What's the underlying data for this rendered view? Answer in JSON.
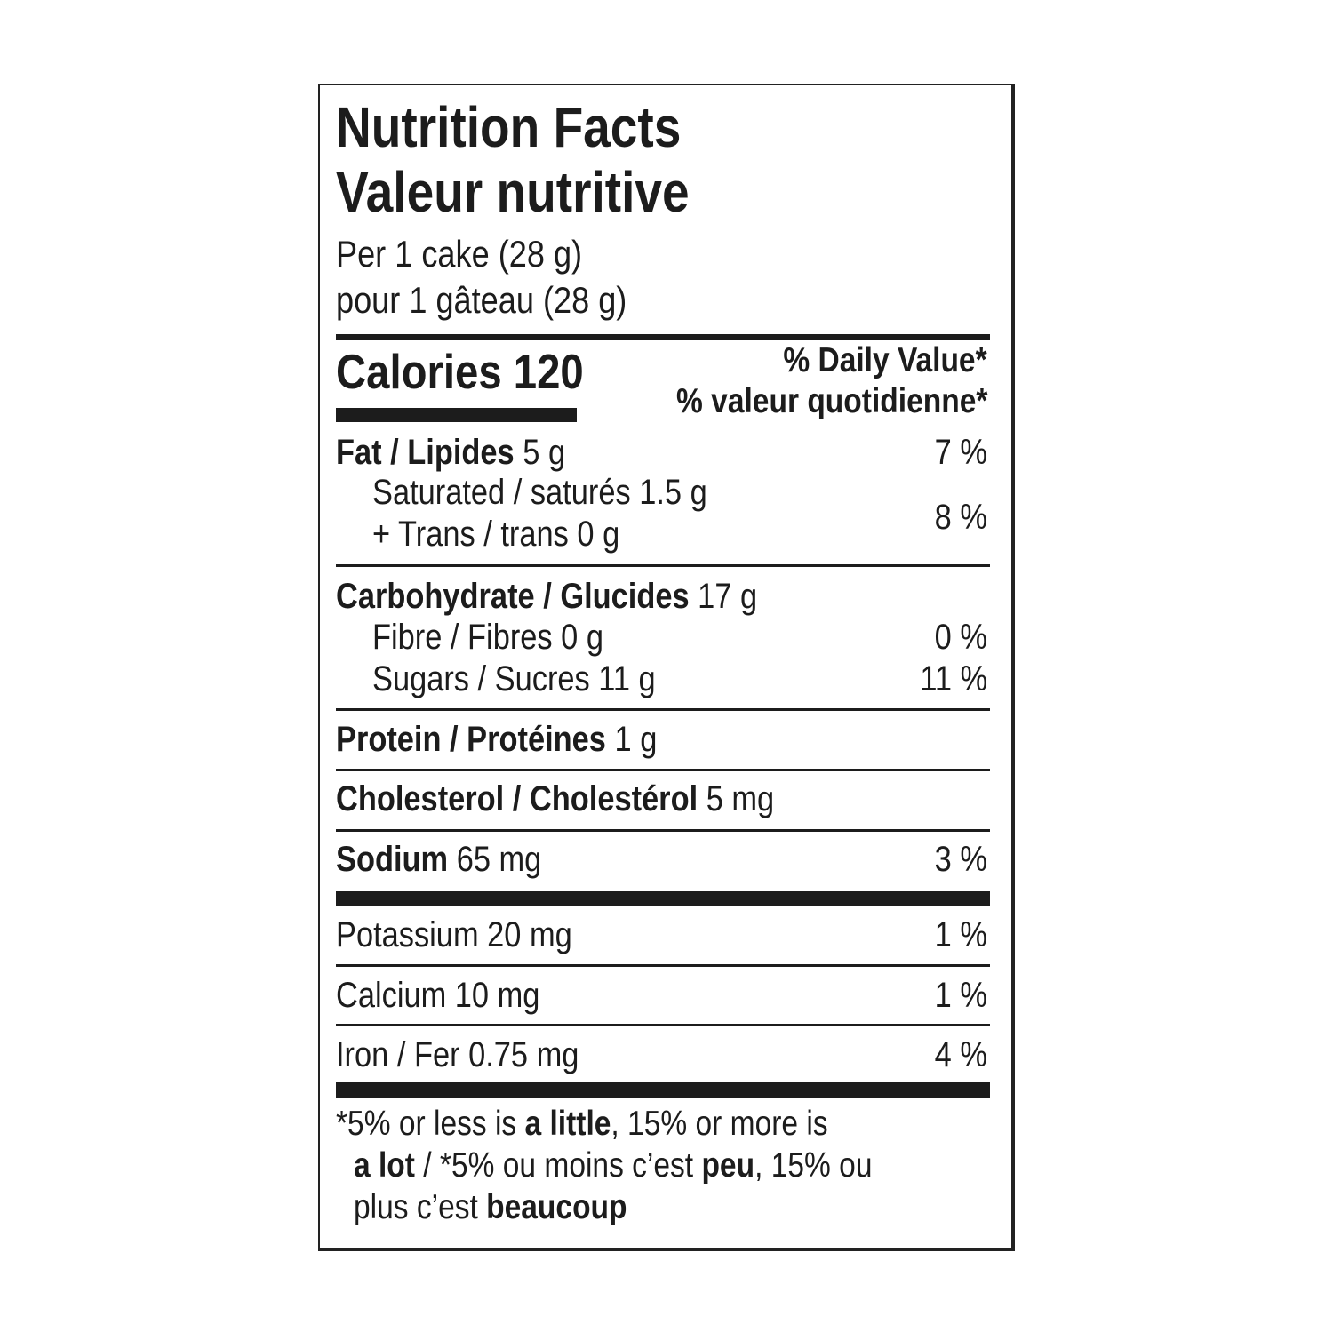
{
  "title_en": "Nutrition Facts",
  "title_fr": "Valeur nutritive",
  "serving_en": "Per 1 cake (28 g)",
  "serving_fr": "pour 1 gâteau (28 g)",
  "calories_label": "Calories",
  "calories_value": "120",
  "dv_header_en": "% Daily Value*",
  "dv_header_fr": "% valeur quotidienne*",
  "nutrients": {
    "fat": {
      "label": "Fat / Lipides",
      "amount": "5 g",
      "dv": "7 %"
    },
    "saturated": {
      "label": "Saturated / saturés 1.5 g"
    },
    "trans": {
      "label": "+ Trans / trans 0 g"
    },
    "sat_trans_dv": "8 %",
    "carbohydrate": {
      "label": "Carbohydrate / Glucides",
      "amount": "17 g"
    },
    "fibre": {
      "label": "Fibre / Fibres 0 g",
      "dv": "0 %"
    },
    "sugars": {
      "label": "Sugars / Sucres 11 g",
      "dv": "11 %"
    },
    "protein": {
      "label": "Protein / Protéines",
      "amount": "1 g"
    },
    "cholesterol": {
      "label": "Cholesterol / Cholestérol",
      "amount": "5 mg"
    },
    "sodium": {
      "label": "Sodium",
      "amount": "65 mg",
      "dv": "3 %"
    },
    "potassium": {
      "label": "Potassium 20 mg",
      "dv": "1 %"
    },
    "calcium": {
      "label": "Calcium 10 mg",
      "dv": "1 %"
    },
    "iron": {
      "label": "Iron / Fer 0.75 mg",
      "dv": "4 %"
    }
  },
  "footnote": {
    "l1a": "*5% or less is ",
    "l1b": "a little",
    "l1c": ", 15% or more is",
    "l2a": "a lot",
    "l2b": " / *5% ou moins c’est ",
    "l2c": "peu",
    "l2d": ", 15% ou",
    "l3a": "plus c’est ",
    "l3b": "beaucoup"
  }
}
